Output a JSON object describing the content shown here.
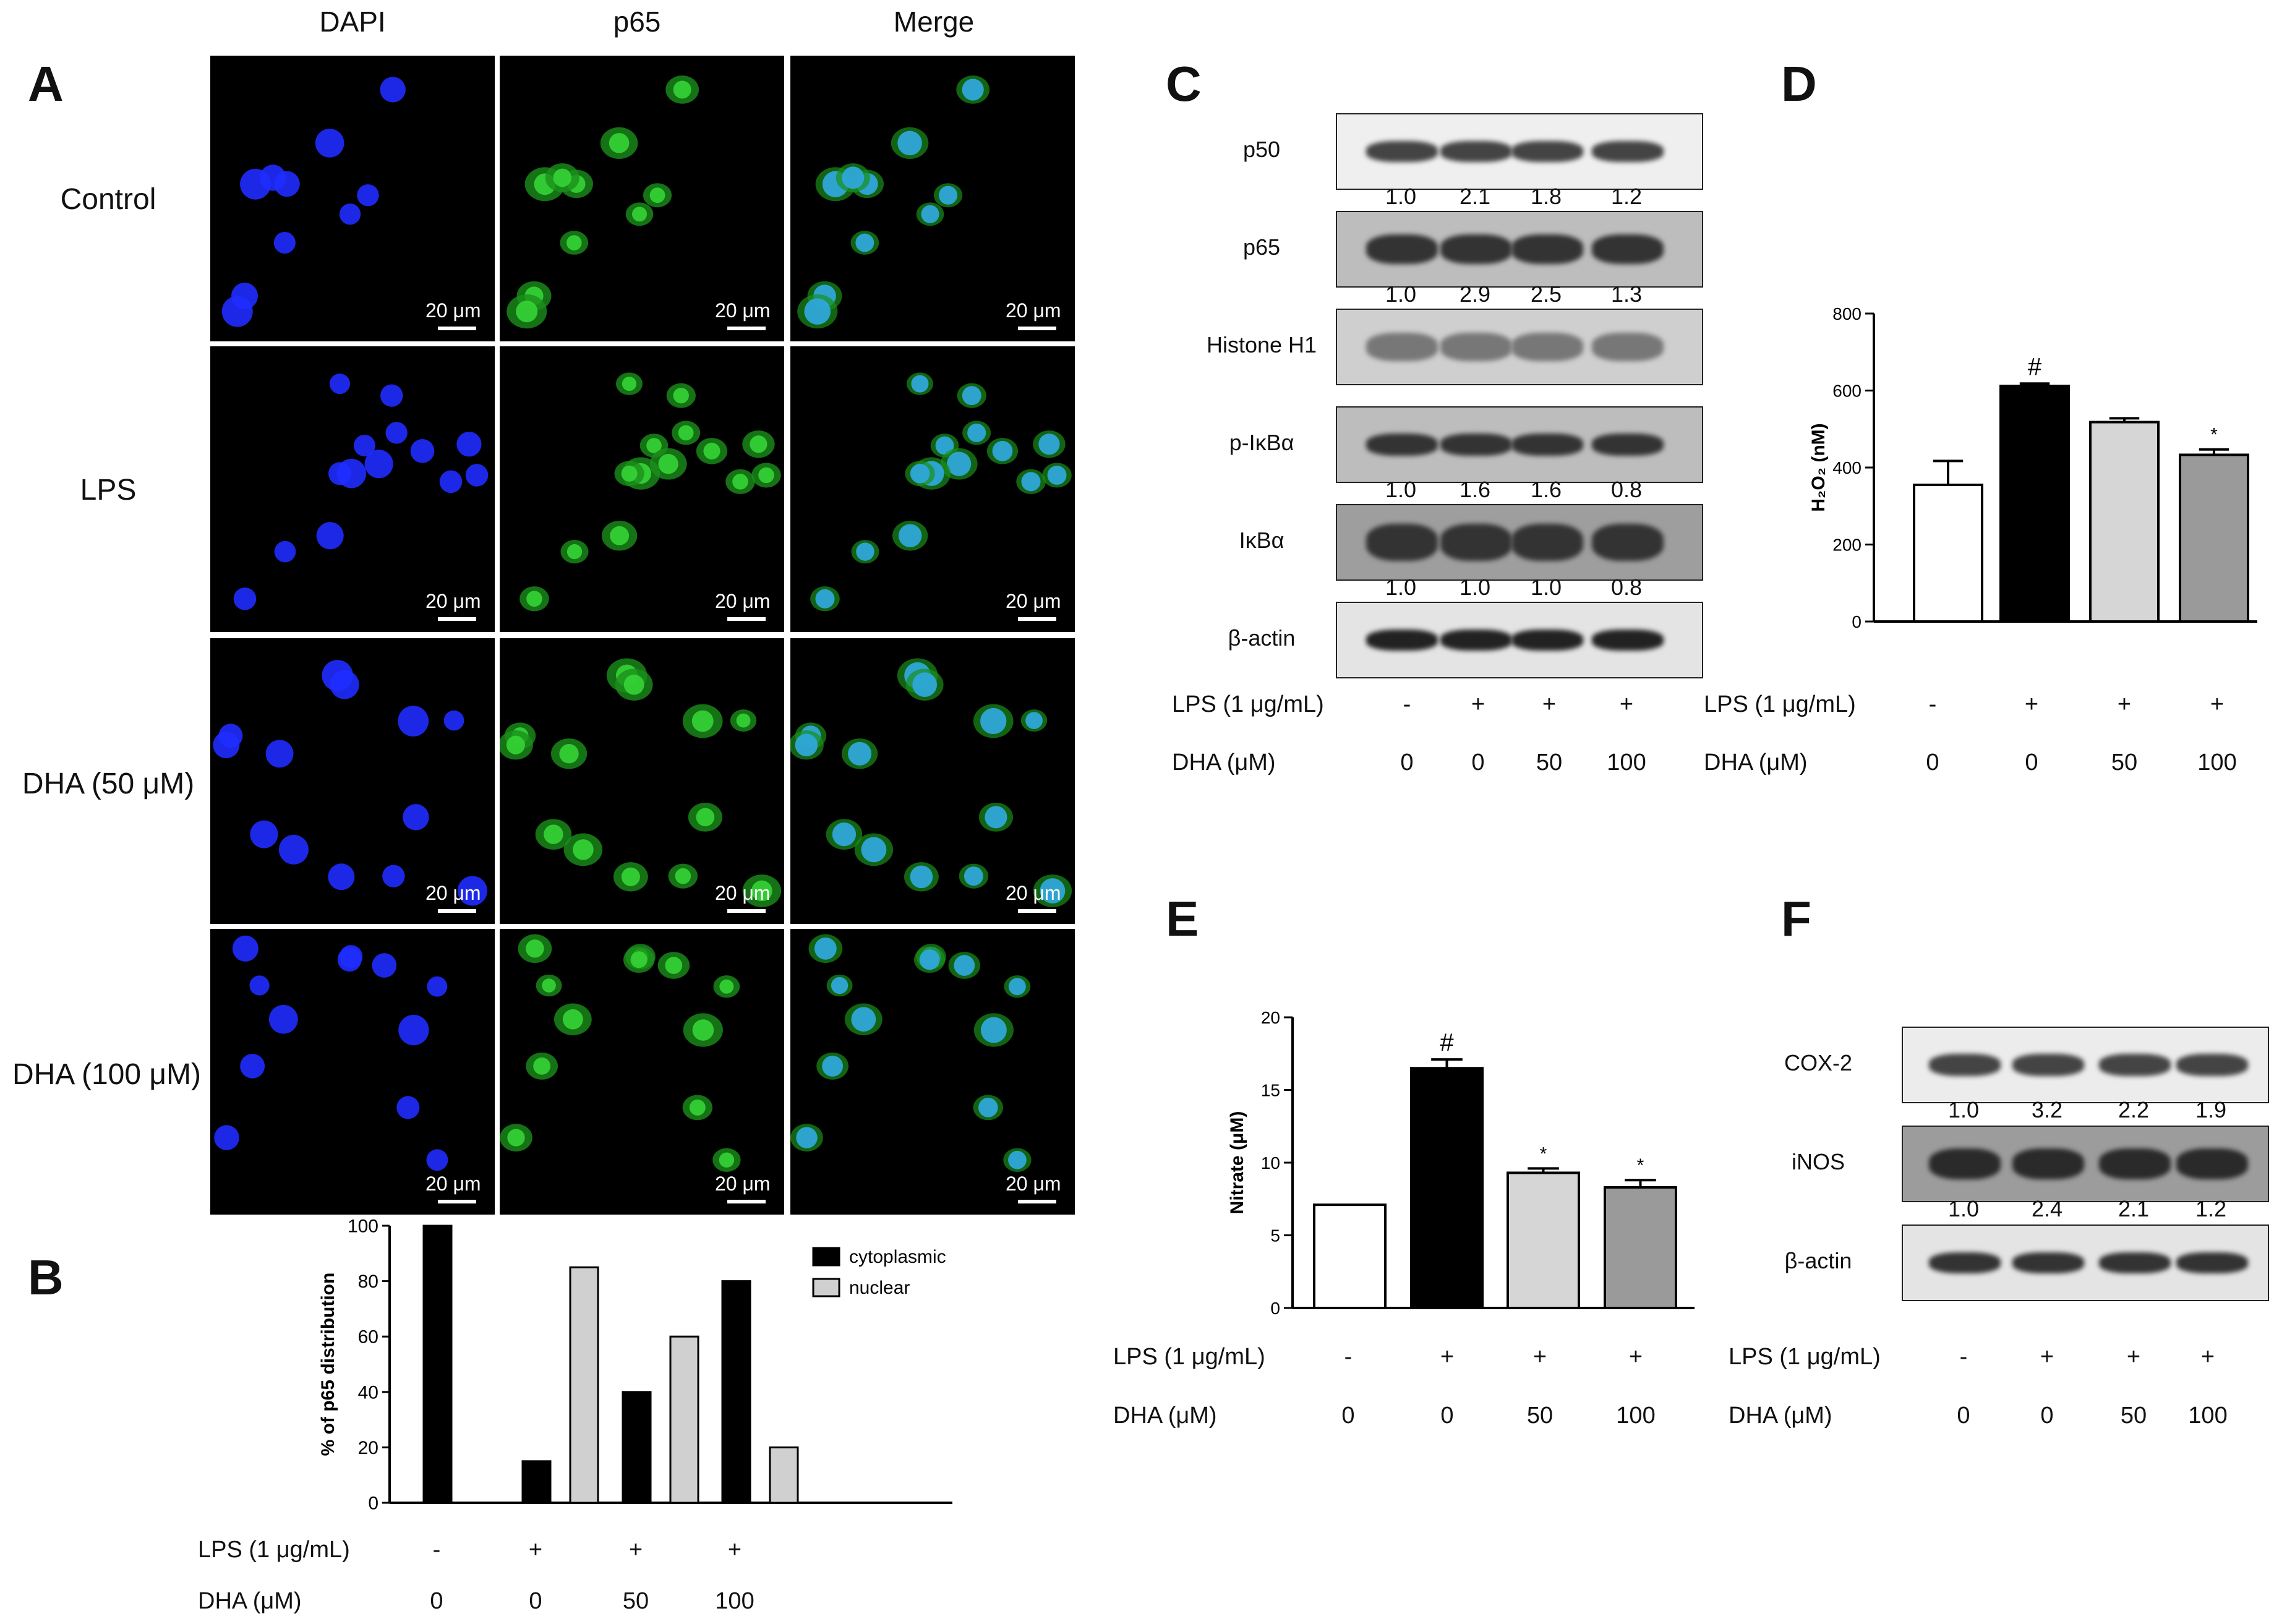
{
  "panelA": {
    "letter": "A",
    "columns": [
      "DAPI",
      "p65",
      "Merge"
    ],
    "rows": [
      "Control",
      "LPS",
      "DHA (50 μM)",
      "DHA (100 μM)"
    ],
    "scale_bar": "20 μm"
  },
  "panelB": {
    "letter": "B",
    "conditions": {
      "lps_label": "LPS  (1 μg/mL)",
      "dha_label": "DHA (μM)",
      "lps": [
        "-",
        "+",
        "+",
        "+"
      ],
      "dha": [
        "0",
        "0",
        "50",
        "100"
      ]
    }
  },
  "panelC": {
    "letter": "C",
    "blots": [
      {
        "label": "p50",
        "quant": [
          "1.0",
          "2.1",
          "1.8",
          "1.2"
        ]
      },
      {
        "label": "p65",
        "quant": [
          "1.0",
          "2.9",
          "2.5",
          "1.3"
        ]
      },
      {
        "label": "Histone H1",
        "quant": []
      },
      {
        "label": "p-IκBα",
        "quant": [
          "1.0",
          "1.6",
          "1.6",
          "0.8"
        ]
      },
      {
        "label": "IκBα",
        "quant": [
          "1.0",
          "1.0",
          "1.0",
          "0.8"
        ]
      },
      {
        "label": "β-actin",
        "quant": []
      }
    ],
    "conditions": {
      "lps_label": "LPS (1 μg/mL)",
      "dha_label": "DHA (μM)",
      "lps": [
        "-",
        "+",
        "+",
        "+"
      ],
      "dha": [
        "0",
        "0",
        "50",
        "100"
      ]
    }
  },
  "panelD": {
    "letter": "D",
    "conditions": {
      "lps_label": "LPS  (1 μg/mL)",
      "dha_label": "DHA (μM)",
      "lps": [
        "-",
        "+",
        "+",
        "+"
      ],
      "dha": [
        "0",
        "0",
        "50",
        "100"
      ]
    }
  },
  "panelE": {
    "letter": "E",
    "conditions": {
      "lps_label": "LPS  (1 μg/mL)",
      "dha_label": "DHA (μM)",
      "lps": [
        "-",
        "+",
        "+",
        "+"
      ],
      "dha": [
        "0",
        "0",
        "50",
        "100"
      ]
    }
  },
  "panelF": {
    "letter": "F",
    "blots": [
      {
        "label": "COX-2",
        "quant": [
          "1.0",
          "3.2",
          "2.2",
          "1.9"
        ]
      },
      {
        "label": "iNOS",
        "quant": [
          "1.0",
          "2.4",
          "2.1",
          "1.2"
        ]
      },
      {
        "label": "β-actin",
        "quant": []
      }
    ],
    "conditions": {
      "lps_label": "LPS  (1 μg/mL)",
      "dha_label": "DHA (μM)",
      "lps": [
        "-",
        "+",
        "+",
        "+"
      ],
      "dha": [
        "0",
        "0",
        "50",
        "100"
      ]
    }
  },
  "chart_data": [
    {
      "id": "B",
      "type": "bar",
      "ylabel": "% of p65 distribution",
      "ylim": [
        0,
        100
      ],
      "yticks": [
        0,
        20,
        40,
        60,
        80,
        100
      ],
      "legend_position": "top-right",
      "categories": [
        "1",
        "2",
        "3",
        "4"
      ],
      "series": [
        {
          "name": "cytoplasmic",
          "color": "#000000",
          "values": [
            100,
            15,
            40,
            80
          ]
        },
        {
          "name": "nuclear",
          "color": "#d0d0d0",
          "values": [
            0,
            85,
            60,
            20
          ]
        }
      ]
    },
    {
      "id": "D",
      "type": "bar",
      "ylabel": "H₂O₂ (nM)",
      "ylim": [
        0,
        800
      ],
      "yticks": [
        0,
        200,
        400,
        600,
        800
      ],
      "categories": [
        "1",
        "2",
        "3",
        "4"
      ],
      "values": [
        355,
        612,
        518,
        433
      ],
      "errors": [
        62,
        6,
        10,
        14
      ],
      "colors": [
        "#ffffff",
        "#000000",
        "#d6d6d6",
        "#9a9a9a"
      ],
      "annotations": [
        "",
        "#",
        "",
        "*"
      ]
    },
    {
      "id": "E",
      "type": "bar",
      "ylabel": "Nitrate (μM)",
      "ylim": [
        0,
        20
      ],
      "yticks": [
        0,
        5,
        10,
        15,
        20
      ],
      "categories": [
        "1",
        "2",
        "3",
        "4"
      ],
      "values": [
        7.1,
        16.5,
        9.3,
        8.3
      ],
      "errors": [
        0,
        0.6,
        0.3,
        0.5
      ],
      "colors": [
        "#ffffff",
        "#000000",
        "#d6d6d6",
        "#9a9a9a"
      ],
      "annotations": [
        "",
        "#",
        "*",
        "*"
      ]
    }
  ]
}
